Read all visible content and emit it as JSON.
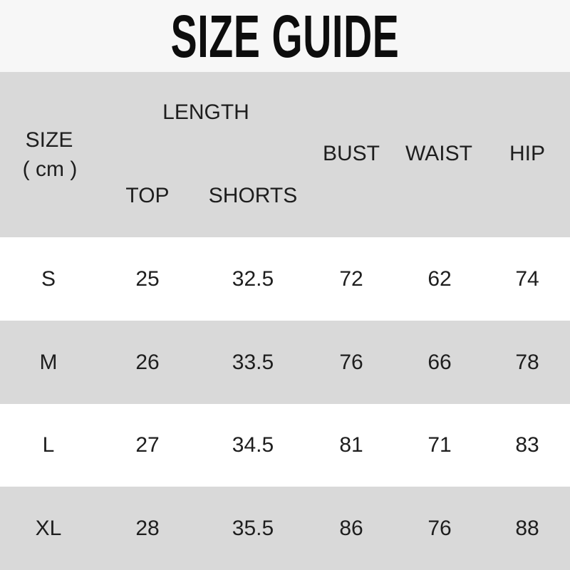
{
  "title": "SIZE GUIDE",
  "colors": {
    "title_bg": "#f7f7f7",
    "header_bg": "#d9d9d9",
    "row_white": "#ffffff",
    "row_gray": "#d9d9d9"
  },
  "header": {
    "size": "SIZE",
    "unit": "( cm )",
    "length": "LENGTH",
    "top": "TOP",
    "shorts": "SHORTS",
    "bust": "BUST",
    "waist": "WAIST",
    "hip": "HIP"
  },
  "rows": [
    {
      "size": "S",
      "top": "25",
      "shorts": "32.5",
      "bust": "72",
      "waist": "62",
      "hip": "74"
    },
    {
      "size": "M",
      "top": "26",
      "shorts": "33.5",
      "bust": "76",
      "waist": "66",
      "hip": "78"
    },
    {
      "size": "L",
      "top": "27",
      "shorts": "34.5",
      "bust": "81",
      "waist": "71",
      "hip": "83"
    },
    {
      "size": "XL",
      "top": "28",
      "shorts": "35.5",
      "bust": "86",
      "waist": "76",
      "hip": "88"
    }
  ]
}
